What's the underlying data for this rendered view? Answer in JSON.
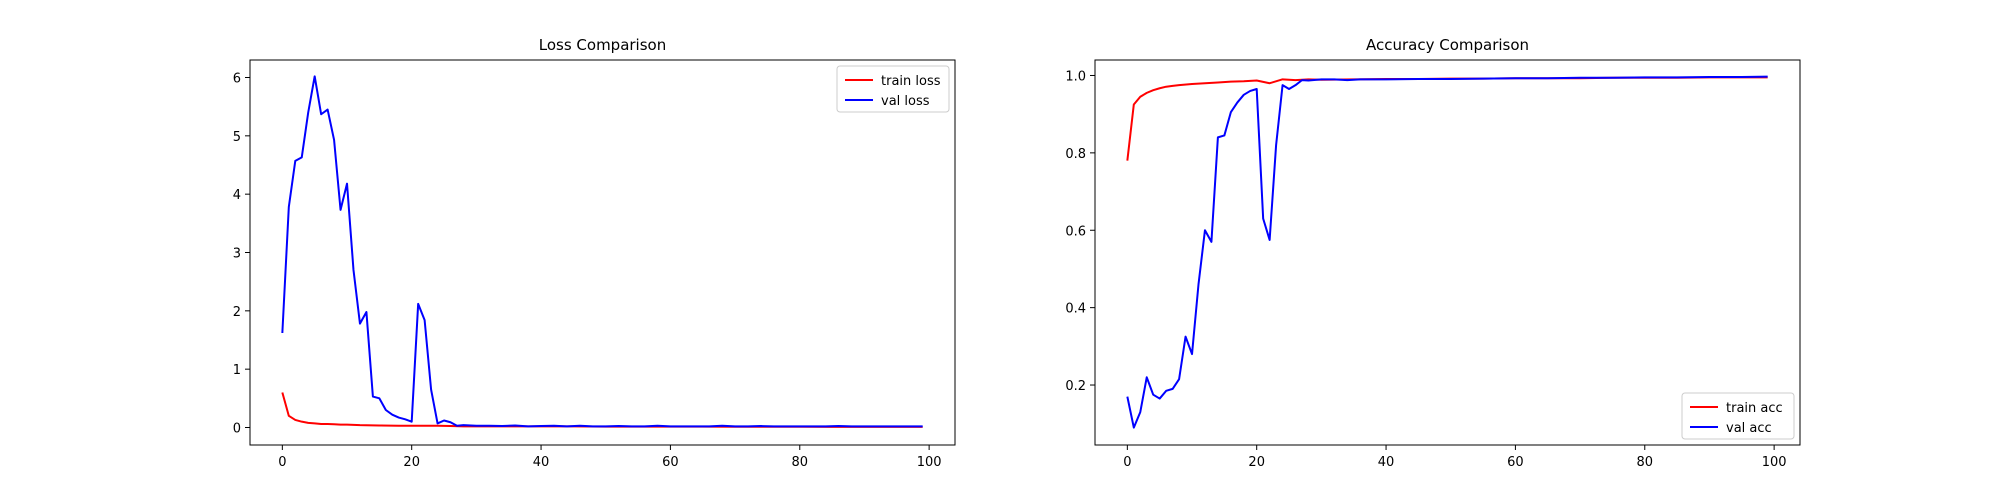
{
  "chart_data": [
    {
      "type": "line",
      "title": "Loss Comparison",
      "xlabel": "",
      "ylabel": "",
      "xlim": [
        -5,
        104
      ],
      "ylim": [
        -0.3,
        6.3
      ],
      "xticks": [
        0,
        20,
        40,
        60,
        80,
        100
      ],
      "yticks": [
        0,
        1,
        2,
        3,
        4,
        5,
        6
      ],
      "grid": false,
      "legend": "upper right",
      "series": [
        {
          "name": "train loss",
          "color": "#ff0000",
          "x": [
            0,
            1,
            2,
            3,
            4,
            5,
            6,
            7,
            8,
            9,
            10,
            12,
            15,
            18,
            20,
            22,
            24,
            26,
            28,
            30,
            35,
            40,
            45,
            50,
            55,
            60,
            65,
            70,
            75,
            80,
            85,
            90,
            95,
            99
          ],
          "y": [
            0.6,
            0.2,
            0.13,
            0.1,
            0.08,
            0.07,
            0.06,
            0.06,
            0.055,
            0.05,
            0.05,
            0.04,
            0.035,
            0.03,
            0.03,
            0.03,
            0.03,
            0.025,
            0.02,
            0.02,
            0.02,
            0.02,
            0.02,
            0.015,
            0.015,
            0.015,
            0.015,
            0.012,
            0.012,
            0.012,
            0.01,
            0.01,
            0.01,
            0.01
          ]
        },
        {
          "name": "val loss",
          "color": "#0000ff",
          "x": [
            0,
            1,
            2,
            3,
            4,
            5,
            6,
            7,
            8,
            9,
            10,
            11,
            12,
            13,
            14,
            15,
            16,
            17,
            18,
            19,
            20,
            21,
            22,
            23,
            24,
            25,
            26,
            27,
            28,
            30,
            32,
            34,
            36,
            38,
            40,
            42,
            44,
            46,
            48,
            50,
            52,
            54,
            56,
            58,
            60,
            62,
            64,
            66,
            68,
            70,
            72,
            74,
            76,
            78,
            80,
            82,
            84,
            86,
            88,
            90,
            92,
            94,
            96,
            98,
            99
          ],
          "y": [
            1.62,
            3.78,
            4.57,
            4.63,
            5.4,
            6.02,
            5.37,
            5.45,
            4.93,
            3.73,
            4.18,
            2.7,
            1.78,
            1.98,
            0.53,
            0.5,
            0.3,
            0.22,
            0.17,
            0.14,
            0.1,
            2.12,
            1.84,
            0.65,
            0.07,
            0.12,
            0.09,
            0.03,
            0.04,
            0.03,
            0.03,
            0.025,
            0.035,
            0.02,
            0.025,
            0.03,
            0.02,
            0.03,
            0.02,
            0.02,
            0.025,
            0.02,
            0.02,
            0.03,
            0.02,
            0.02,
            0.02,
            0.02,
            0.03,
            0.02,
            0.02,
            0.025,
            0.02,
            0.02,
            0.02,
            0.02,
            0.02,
            0.025,
            0.02,
            0.02,
            0.02,
            0.02,
            0.02,
            0.02,
            0.02
          ]
        }
      ]
    },
    {
      "type": "line",
      "title": "Accuracy Comparison",
      "xlabel": "",
      "ylabel": "",
      "xlim": [
        -5,
        104
      ],
      "ylim": [
        0.045,
        1.04
      ],
      "xticks": [
        0,
        20,
        40,
        60,
        80,
        100
      ],
      "yticks": [
        0.2,
        0.4,
        0.6,
        0.8,
        1.0
      ],
      "ytick_labels": [
        "0.2",
        "0.4",
        "0.6",
        "0.8",
        "1.0"
      ],
      "grid": false,
      "legend": "lower right",
      "series": [
        {
          "name": "train acc",
          "color": "#ff0000",
          "x": [
            0,
            1,
            2,
            3,
            4,
            5,
            6,
            7,
            8,
            10,
            12,
            14,
            16,
            18,
            20,
            22,
            24,
            26,
            28,
            30,
            35,
            40,
            45,
            50,
            55,
            60,
            65,
            70,
            75,
            80,
            85,
            90,
            95,
            99
          ],
          "y": [
            0.78,
            0.925,
            0.945,
            0.955,
            0.962,
            0.967,
            0.971,
            0.973,
            0.975,
            0.978,
            0.98,
            0.982,
            0.984,
            0.985,
            0.987,
            0.98,
            0.99,
            0.988,
            0.99,
            0.989,
            0.99,
            0.991,
            0.991,
            0.992,
            0.992,
            0.993,
            0.993,
            0.993,
            0.994,
            0.994,
            0.994,
            0.995,
            0.995,
            0.995
          ]
        },
        {
          "name": "val acc",
          "color": "#0000ff",
          "x": [
            0,
            1,
            2,
            3,
            4,
            5,
            6,
            7,
            8,
            9,
            10,
            11,
            12,
            13,
            14,
            15,
            16,
            17,
            18,
            19,
            20,
            21,
            22,
            23,
            24,
            25,
            26,
            27,
            28,
            30,
            32,
            34,
            36,
            38,
            40,
            45,
            50,
            55,
            60,
            65,
            70,
            75,
            80,
            85,
            90,
            95,
            99
          ],
          "y": [
            0.17,
            0.09,
            0.13,
            0.22,
            0.175,
            0.165,
            0.185,
            0.19,
            0.215,
            0.325,
            0.28,
            0.46,
            0.6,
            0.57,
            0.84,
            0.845,
            0.905,
            0.93,
            0.95,
            0.96,
            0.965,
            0.63,
            0.575,
            0.82,
            0.975,
            0.965,
            0.975,
            0.988,
            0.987,
            0.99,
            0.99,
            0.988,
            0.99,
            0.99,
            0.99,
            0.991,
            0.991,
            0.992,
            0.993,
            0.993,
            0.994,
            0.994,
            0.995,
            0.995,
            0.996,
            0.996,
            0.997
          ]
        }
      ]
    }
  ]
}
